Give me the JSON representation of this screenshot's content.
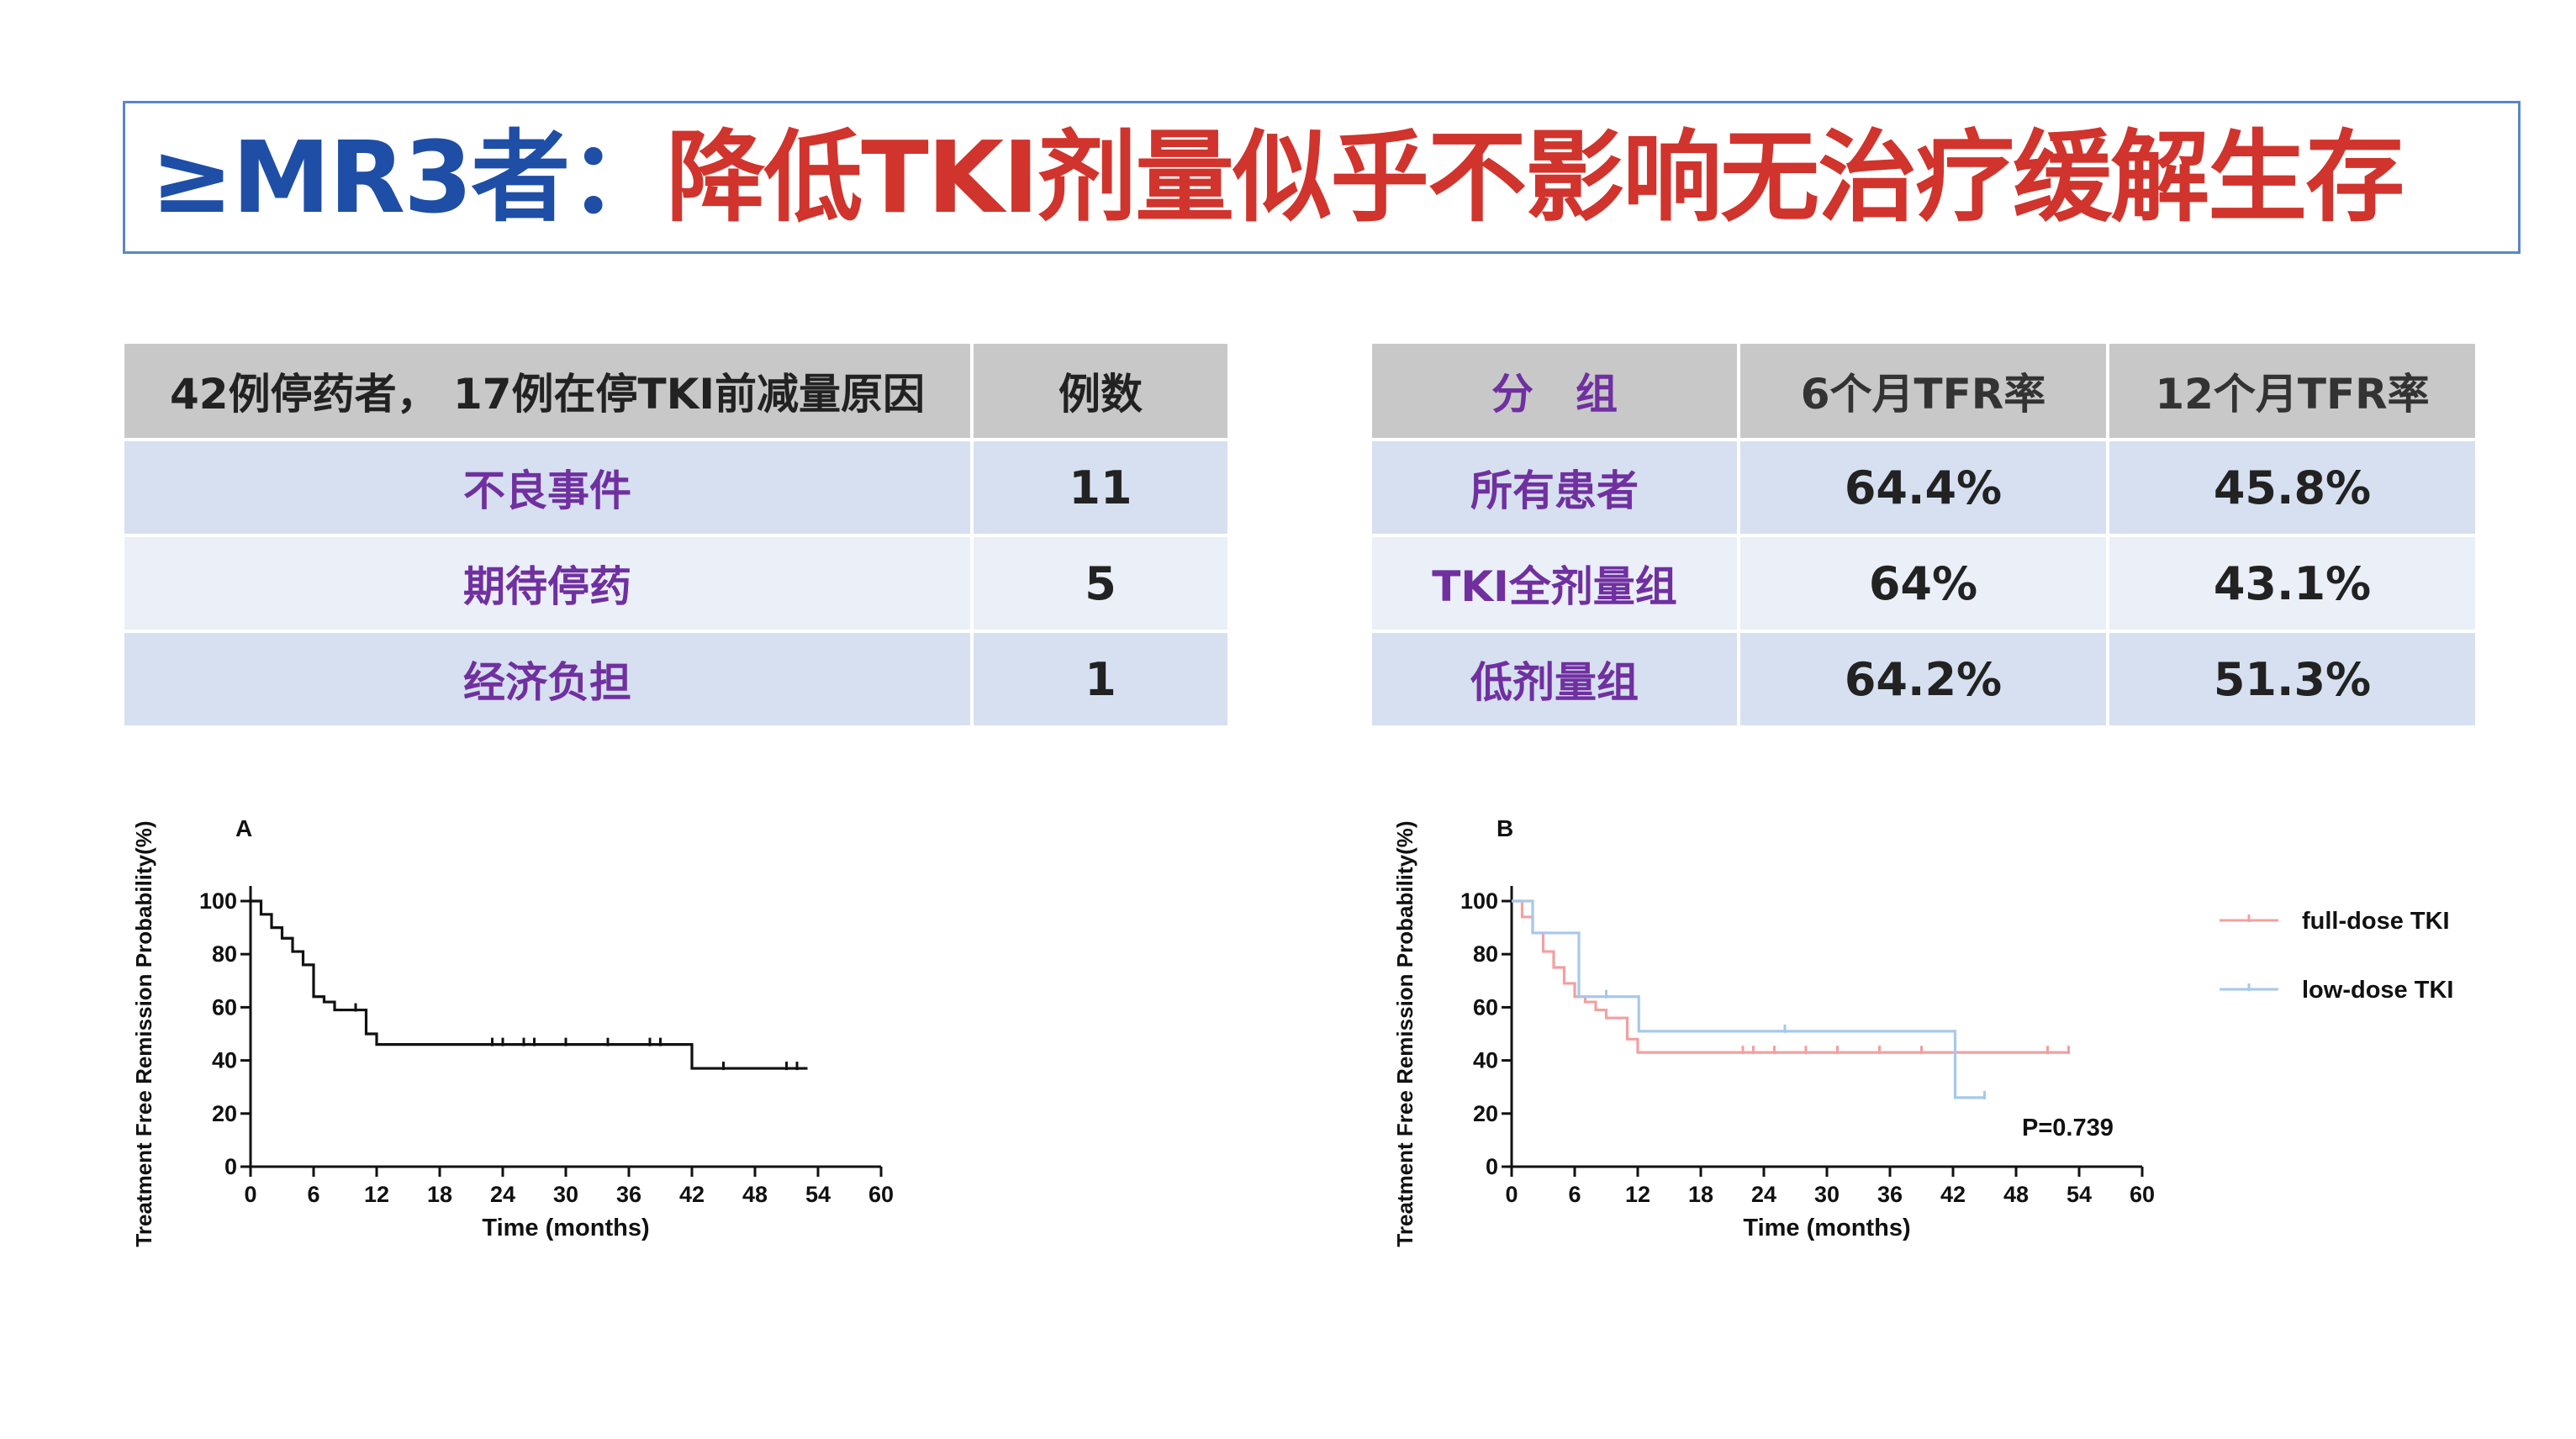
{
  "title": {
    "prefix": "≥MR3者：",
    "main": "降低TKI剂量似乎不影响无治疗缓解生存"
  },
  "table_left": {
    "headers": [
      "42例停药者， 17例在停TKI前减量原因",
      "例数"
    ],
    "rows": [
      {
        "reason": "不良事件",
        "count": "11"
      },
      {
        "reason": "期待停药",
        "count": "5"
      },
      {
        "reason": "经济负担",
        "count": "1"
      }
    ]
  },
  "table_right": {
    "headers": [
      "分　组",
      "6个月TFR率",
      "12个月TFR率"
    ],
    "rows": [
      {
        "group": "所有患者",
        "m6": "64.4%",
        "m12": "45.8%"
      },
      {
        "group": "TKI全剂量组",
        "m6": "64%",
        "m12": "43.1%"
      },
      {
        "group": "低剂量组",
        "m6": "64.2%",
        "m12": "51.3%"
      }
    ]
  },
  "colors": {
    "full_dose": "#f2a0a0",
    "low_dose": "#a6c8ec",
    "all": "#111111"
  },
  "chart_data": [
    {
      "type": "line",
      "panel": "A",
      "xlabel": "Time (months)",
      "ylabel": "Treatment Free Remission Probability(%)",
      "xlim": [
        0,
        60
      ],
      "ylim": [
        0,
        100
      ],
      "xticks": [
        0,
        6,
        12,
        18,
        24,
        30,
        36,
        42,
        48,
        54,
        60
      ],
      "yticks": [
        0,
        20,
        40,
        60,
        80,
        100
      ],
      "series": [
        {
          "step": [
            [
              0,
              100
            ],
            [
              1,
              95
            ],
            [
              2,
              90
            ],
            [
              3,
              86
            ],
            [
              4,
              81
            ],
            [
              5,
              76
            ],
            [
              6,
              64
            ],
            [
              7,
              62
            ],
            [
              8,
              59
            ],
            [
              11,
              50
            ],
            [
              12,
              46
            ],
            [
              42,
              37
            ],
            [
              53,
              37
            ]
          ],
          "censors": [
            [
              10,
              59
            ],
            [
              23,
              46
            ],
            [
              24,
              46
            ],
            [
              26,
              46
            ],
            [
              27,
              46
            ],
            [
              30,
              46
            ],
            [
              34,
              46
            ],
            [
              38,
              46
            ],
            [
              39,
              46
            ],
            [
              45,
              37
            ],
            [
              51,
              37
            ],
            [
              52,
              37
            ]
          ]
        }
      ]
    },
    {
      "type": "line",
      "panel": "B",
      "xlabel": "Time (months)",
      "ylabel": "Treatment Free Remission Probability(%)",
      "xlim": [
        0,
        60
      ],
      "ylim": [
        0,
        100
      ],
      "xticks": [
        0,
        6,
        12,
        18,
        24,
        30,
        36,
        42,
        48,
        54,
        60
      ],
      "yticks": [
        0,
        20,
        40,
        60,
        80,
        100
      ],
      "annotation": "P=0.739",
      "legend": "right",
      "series": [
        {
          "name": "full-dose TKI",
          "step": [
            [
              0,
              100
            ],
            [
              1,
              94
            ],
            [
              2,
              88
            ],
            [
              3,
              81
            ],
            [
              4,
              75
            ],
            [
              5,
              69
            ],
            [
              6,
              64
            ],
            [
              7,
              62
            ],
            [
              8,
              59
            ],
            [
              9,
              56
            ],
            [
              11,
              48
            ],
            [
              12,
              43
            ],
            [
              53,
              43
            ]
          ],
          "censors": [
            [
              22,
              43
            ],
            [
              23,
              43
            ],
            [
              25,
              43
            ],
            [
              28,
              43
            ],
            [
              31,
              43
            ],
            [
              35,
              43
            ],
            [
              39,
              43
            ],
            [
              51,
              43
            ],
            [
              53,
              43
            ]
          ]
        },
        {
          "name": "low-dose TKI",
          "step": [
            [
              0,
              100
            ],
            [
              2,
              88
            ],
            [
              6,
              88
            ],
            [
              6.4,
              64
            ],
            [
              12,
              64
            ],
            [
              12.1,
              51
            ],
            [
              42,
              51
            ],
            [
              42.2,
              26
            ],
            [
              45,
              26
            ]
          ],
          "censors": [
            [
              9,
              64
            ],
            [
              26,
              51
            ],
            [
              45,
              26
            ]
          ]
        }
      ]
    }
  ]
}
